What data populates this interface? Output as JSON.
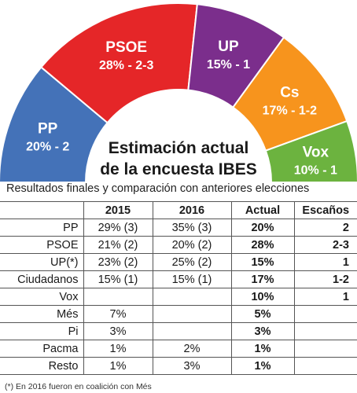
{
  "chart_data": {
    "type": "pie",
    "variant": "semicircle",
    "title": "Estimación actual de la encuesta IBES",
    "title_lines": [
      "Estimación actual",
      "de la encuesta IBES"
    ],
    "slices": [
      {
        "party": "PP",
        "label": "20% - 2",
        "percent": 20,
        "color": "#4472b8"
      },
      {
        "party": "PSOE",
        "label": "28% - 2-3",
        "percent": 28,
        "color": "#e52628"
      },
      {
        "party": "UP",
        "label": "15% - 1",
        "percent": 15,
        "color": "#7b2e8c"
      },
      {
        "party": "Cs",
        "label": "17% - 1-2",
        "percent": 17,
        "color": "#f7941d"
      },
      {
        "party": "Vox",
        "label": "10% - 1",
        "percent": 10,
        "color": "#6cb33f"
      }
    ]
  },
  "table": {
    "caption": "Resultados finales y comparación con anteriores elecciones",
    "headers": [
      "",
      "2015",
      "2016",
      "Actual",
      "Escaños"
    ],
    "rows": [
      {
        "party": "PP",
        "y2015": "29% (3)",
        "y2016": "35% (3)",
        "actual": "20%",
        "seats": "2"
      },
      {
        "party": "PSOE",
        "y2015": "21% (2)",
        "y2016": "20% (2)",
        "actual": "28%",
        "seats": "2-3"
      },
      {
        "party": "UP(*)",
        "y2015": "23% (2)",
        "y2016": "25% (2)",
        "actual": "15%",
        "seats": "1"
      },
      {
        "party": "Ciudadanos",
        "y2015": "15% (1)",
        "y2016": "15% (1)",
        "actual": "17%",
        "seats": "1-2"
      },
      {
        "party": "Vox",
        "y2015": "",
        "y2016": "",
        "actual": "10%",
        "seats": "1"
      },
      {
        "party": "Més",
        "y2015": "7%",
        "y2016": "",
        "actual": "5%",
        "seats": ""
      },
      {
        "party": "Pi",
        "y2015": "3%",
        "y2016": "",
        "actual": "3%",
        "seats": ""
      },
      {
        "party": "Pacma",
        "y2015": "1%",
        "y2016": "2%",
        "actual": "1%",
        "seats": ""
      },
      {
        "party": "Resto",
        "y2015": "1%",
        "y2016": "3%",
        "actual": "1%",
        "seats": ""
      }
    ]
  },
  "footnote": "(*) En 2016 fueron en coalición con Més"
}
